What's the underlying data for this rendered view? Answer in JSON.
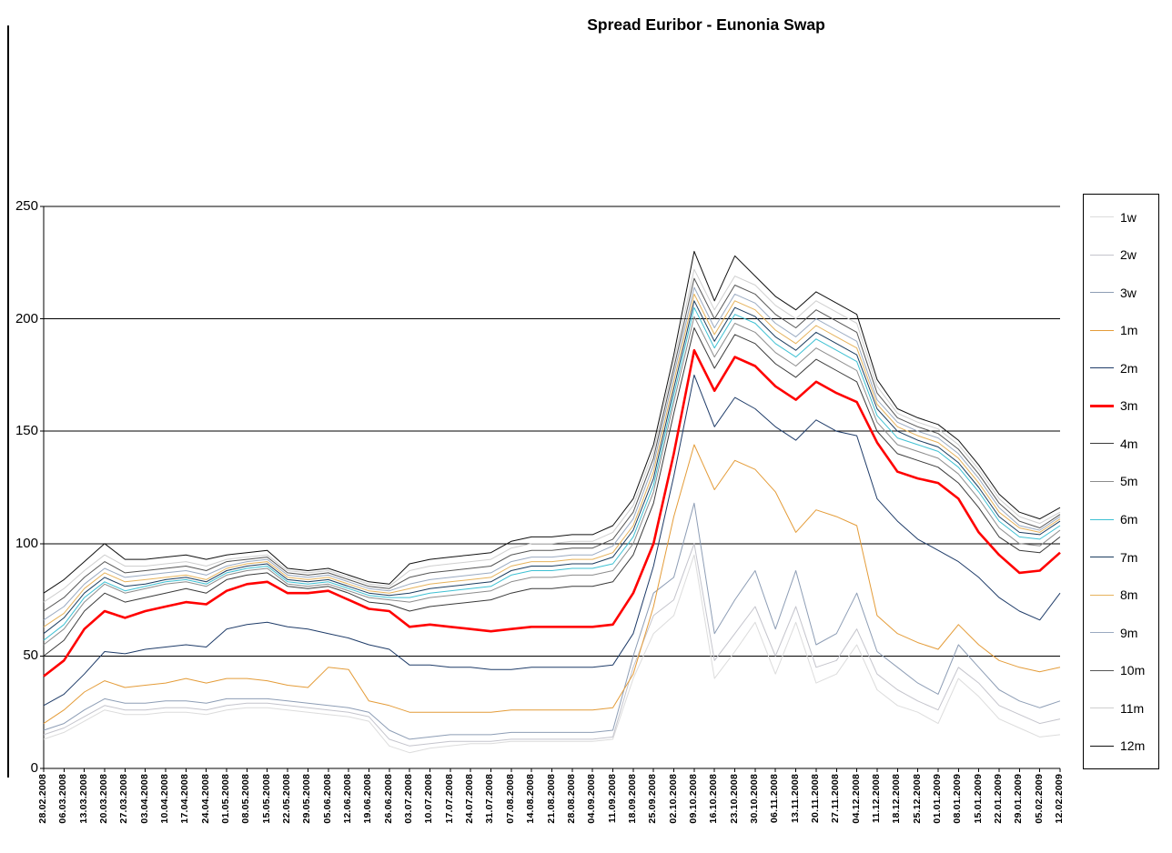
{
  "chart_data": {
    "type": "line",
    "title": "Spread Euribor - Eunonia Swap",
    "xlabel": "",
    "ylabel": "",
    "ylim": [
      0,
      250
    ],
    "yticks": [
      0,
      50,
      100,
      150,
      200,
      250
    ],
    "grid": true,
    "legend_position": "right",
    "x": [
      "28.02.2008",
      "06.03.2008",
      "13.03.2008",
      "20.03.2008",
      "27.03.2008",
      "03.04.2008",
      "10.04.2008",
      "17.04.2008",
      "24.04.2008",
      "01.05.2008",
      "08.05.2008",
      "15.05.2008",
      "22.05.2008",
      "29.05.2008",
      "05.06.2008",
      "12.06.2008",
      "19.06.2008",
      "26.06.2008",
      "03.07.2008",
      "10.07.2008",
      "17.07.2008",
      "24.07.2008",
      "31.07.2008",
      "07.08.2008",
      "14.08.2008",
      "21.08.2008",
      "28.08.2008",
      "04.09.2008",
      "11.09.2008",
      "18.09.2008",
      "25.09.2008",
      "02.10.2008",
      "09.10.2008",
      "16.10.2008",
      "23.10.2008",
      "30.10.2008",
      "06.11.2008",
      "13.11.2008",
      "20.11.2008",
      "27.11.2008",
      "04.12.2008",
      "11.12.2008",
      "18.12.2008",
      "25.12.2008",
      "01.01.2009",
      "08.01.2009",
      "15.01.2009",
      "22.01.2009",
      "29.01.2009",
      "05.02.2009",
      "12.02.2009"
    ],
    "series": [
      {
        "name": "1w",
        "color": "#dcdcdc",
        "width": 1,
        "values": [
          13,
          16,
          21,
          26,
          24,
          24,
          25,
          25,
          24,
          26,
          27,
          27,
          26,
          25,
          24,
          23,
          21,
          10,
          7,
          9,
          10,
          11,
          11,
          12,
          12,
          12,
          12,
          12,
          13,
          40,
          60,
          68,
          95,
          40,
          52,
          65,
          42,
          65,
          38,
          42,
          55,
          35,
          28,
          25,
          20,
          40,
          32,
          22,
          18,
          14,
          15
        ]
      },
      {
        "name": "2w",
        "color": "#c4c4cc",
        "width": 1,
        "values": [
          15,
          18,
          23,
          28,
          26,
          26,
          27,
          27,
          26,
          28,
          29,
          29,
          28,
          27,
          26,
          25,
          23,
          13,
          10,
          11,
          12,
          12,
          12,
          13,
          13,
          13,
          13,
          13,
          14,
          45,
          68,
          75,
          100,
          48,
          60,
          72,
          50,
          72,
          45,
          48,
          62,
          42,
          35,
          30,
          26,
          45,
          38,
          28,
          24,
          20,
          22
        ]
      },
      {
        "name": "3w",
        "color": "#8d9db5",
        "width": 1,
        "values": [
          17,
          20,
          26,
          31,
          29,
          29,
          30,
          30,
          29,
          31,
          31,
          31,
          30,
          29,
          28,
          27,
          25,
          17,
          13,
          14,
          15,
          15,
          15,
          16,
          16,
          16,
          16,
          16,
          17,
          50,
          78,
          85,
          118,
          60,
          75,
          88,
          62,
          88,
          55,
          60,
          78,
          52,
          45,
          38,
          33,
          55,
          45,
          35,
          30,
          27,
          30
        ]
      },
      {
        "name": "1m",
        "color": "#e49c39",
        "width": 1,
        "values": [
          20,
          26,
          34,
          39,
          36,
          37,
          38,
          40,
          38,
          40,
          40,
          39,
          37,
          36,
          45,
          44,
          30,
          28,
          25,
          25,
          25,
          25,
          25,
          26,
          26,
          26,
          26,
          26,
          27,
          42,
          72,
          112,
          144,
          124,
          137,
          133,
          123,
          105,
          115,
          112,
          108,
          68,
          60,
          56,
          53,
          64,
          55,
          48,
          45,
          43,
          45
        ]
      },
      {
        "name": "2m",
        "color": "#1f3c69",
        "width": 1,
        "values": [
          28,
          33,
          42,
          52,
          51,
          53,
          54,
          55,
          54,
          62,
          64,
          65,
          63,
          62,
          60,
          58,
          55,
          53,
          46,
          46,
          45,
          45,
          44,
          44,
          45,
          45,
          45,
          45,
          46,
          60,
          90,
          130,
          175,
          152,
          165,
          160,
          152,
          146,
          155,
          150,
          148,
          120,
          110,
          102,
          97,
          92,
          85,
          76,
          70,
          66,
          78
        ]
      },
      {
        "name": "3m",
        "color": "#ff0000",
        "width": 2.6,
        "values": [
          41,
          48,
          62,
          70,
          67,
          70,
          72,
          74,
          73,
          79,
          82,
          83,
          78,
          78,
          79,
          75,
          71,
          70,
          63,
          64,
          63,
          62,
          61,
          62,
          63,
          63,
          63,
          63,
          64,
          78,
          100,
          140,
          186,
          168,
          183,
          179,
          170,
          164,
          172,
          167,
          163,
          145,
          132,
          129,
          127,
          120,
          105,
          95,
          87,
          88,
          96
        ]
      },
      {
        "name": "4m",
        "color": "#3a3a3a",
        "width": 1,
        "values": [
          50,
          57,
          70,
          78,
          74,
          76,
          78,
          80,
          78,
          84,
          86,
          87,
          81,
          80,
          81,
          78,
          74,
          73,
          70,
          72,
          73,
          74,
          75,
          78,
          80,
          80,
          81,
          81,
          83,
          95,
          118,
          158,
          196,
          178,
          193,
          189,
          180,
          174,
          182,
          177,
          172,
          150,
          140,
          137,
          134,
          127,
          116,
          103,
          97,
          96,
          103
        ]
      },
      {
        "name": "5m",
        "color": "#8c8c8c",
        "width": 1,
        "values": [
          55,
          62,
          74,
          82,
          78,
          80,
          82,
          83,
          81,
          86,
          88,
          89,
          82,
          81,
          82,
          79,
          76,
          75,
          74,
          76,
          77,
          78,
          79,
          83,
          85,
          85,
          86,
          86,
          88,
          100,
          123,
          163,
          201,
          183,
          198,
          194,
          185,
          179,
          187,
          182,
          177,
          154,
          144,
          141,
          138,
          131,
          120,
          107,
          100,
          99,
          106
        ]
      },
      {
        "name": "6m",
        "color": "#3ec1d3",
        "width": 1,
        "values": [
          57,
          64,
          76,
          83,
          79,
          81,
          83,
          84,
          82,
          87,
          89,
          90,
          83,
          82,
          83,
          80,
          77,
          76,
          76,
          78,
          79,
          80,
          81,
          86,
          88,
          88,
          89,
          89,
          91,
          103,
          126,
          166,
          205,
          187,
          202,
          198,
          189,
          183,
          191,
          186,
          181,
          157,
          147,
          144,
          141,
          134,
          123,
          110,
          103,
          102,
          108
        ]
      },
      {
        "name": "7m",
        "color": "#1c3d5f",
        "width": 1,
        "values": [
          60,
          67,
          78,
          85,
          81,
          82,
          84,
          85,
          83,
          88,
          90,
          91,
          84,
          83,
          84,
          81,
          78,
          77,
          78,
          80,
          81,
          82,
          83,
          88,
          90,
          90,
          91,
          91,
          94,
          106,
          129,
          169,
          208,
          190,
          205,
          201,
          192,
          186,
          194,
          189,
          184,
          160,
          150,
          146,
          143,
          136,
          125,
          112,
          105,
          104,
          110
        ]
      },
      {
        "name": "8m",
        "color": "#e6b35c",
        "width": 1,
        "values": [
          63,
          69,
          80,
          87,
          83,
          84,
          85,
          86,
          84,
          89,
          91,
          92,
          85,
          84,
          85,
          82,
          79,
          78,
          80,
          82,
          83,
          84,
          85,
          90,
          92,
          92,
          93,
          93,
          96,
          108,
          132,
          172,
          211,
          193,
          208,
          204,
          195,
          189,
          197,
          192,
          187,
          162,
          152,
          148,
          145,
          138,
          127,
          114,
          107,
          105,
          111
        ]
      },
      {
        "name": "9m",
        "color": "#9aaac1",
        "width": 1,
        "values": [
          66,
          72,
          82,
          89,
          85,
          86,
          87,
          88,
          86,
          90,
          92,
          93,
          86,
          85,
          86,
          83,
          80,
          79,
          82,
          84,
          85,
          86,
          87,
          92,
          94,
          94,
          95,
          95,
          99,
          111,
          135,
          175,
          214,
          196,
          211,
          207,
          198,
          192,
          200,
          195,
          190,
          164,
          154,
          150,
          147,
          140,
          129,
          116,
          108,
          106,
          112
        ]
      },
      {
        "name": "10m",
        "color": "#565656",
        "width": 1,
        "values": [
          70,
          76,
          85,
          92,
          87,
          88,
          89,
          90,
          88,
          92,
          93,
          94,
          87,
          86,
          87,
          84,
          81,
          80,
          85,
          87,
          88,
          89,
          90,
          95,
          97,
          97,
          98,
          98,
          102,
          114,
          138,
          178,
          218,
          200,
          215,
          211,
          202,
          196,
          204,
          199,
          194,
          167,
          156,
          152,
          149,
          142,
          131,
          118,
          110,
          107,
          113
        ]
      },
      {
        "name": "11m",
        "color": "#cfcfcf",
        "width": 1,
        "values": [
          74,
          80,
          88,
          95,
          90,
          90,
          91,
          92,
          90,
          93,
          94,
          95,
          88,
          87,
          88,
          85,
          82,
          81,
          88,
          90,
          91,
          92,
          93,
          98,
          100,
          100,
          101,
          101,
          105,
          117,
          141,
          181,
          222,
          204,
          219,
          215,
          206,
          200,
          208,
          203,
          198,
          170,
          158,
          154,
          151,
          144,
          133,
          120,
          112,
          109,
          114
        ]
      },
      {
        "name": "12m",
        "color": "#111111",
        "width": 1,
        "values": [
          78,
          84,
          92,
          100,
          93,
          93,
          94,
          95,
          93,
          95,
          96,
          97,
          89,
          88,
          89,
          86,
          83,
          82,
          91,
          93,
          94,
          95,
          96,
          101,
          103,
          103,
          104,
          104,
          108,
          120,
          144,
          184,
          230,
          208,
          228,
          219,
          210,
          204,
          212,
          207,
          202,
          173,
          160,
          156,
          153,
          146,
          135,
          122,
          114,
          111,
          116
        ]
      }
    ]
  }
}
